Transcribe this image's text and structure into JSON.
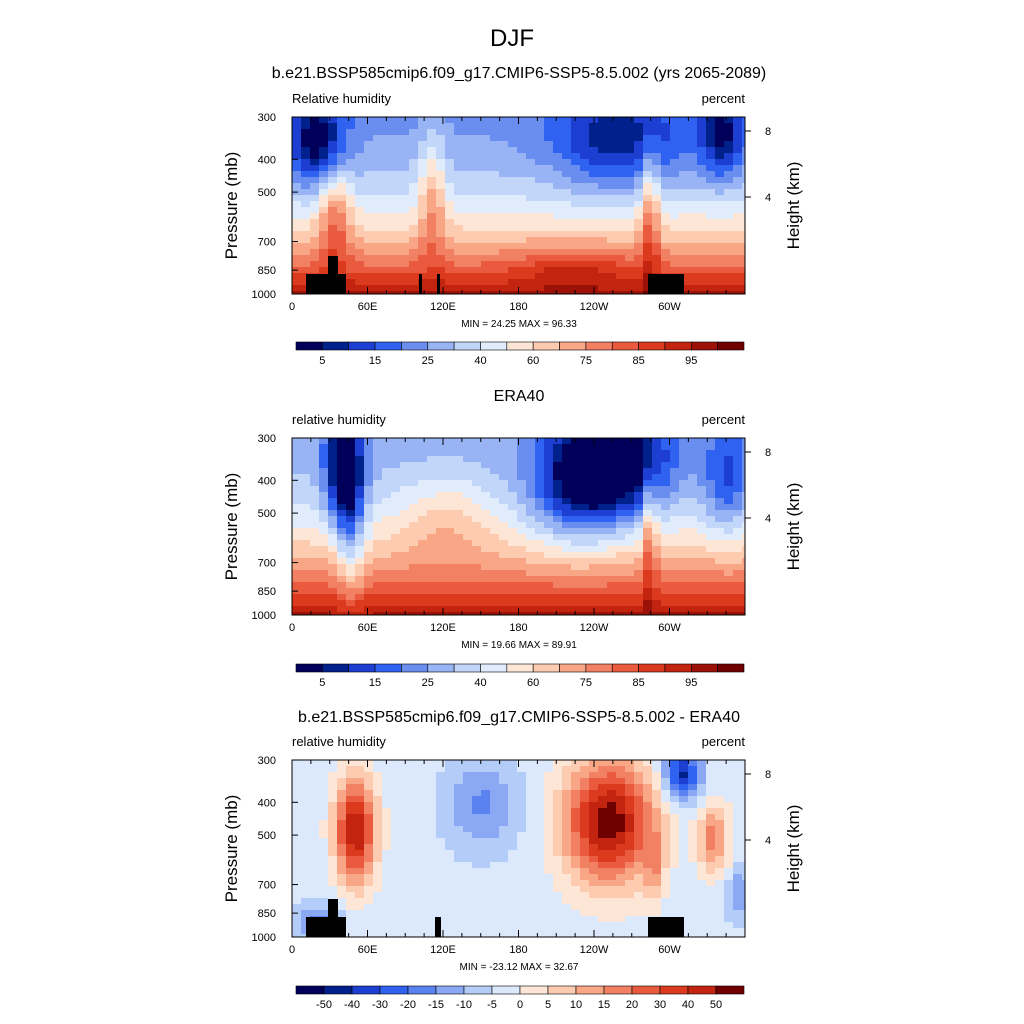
{
  "figure": {
    "main_title": "DJF"
  },
  "chart_data": [
    {
      "type": "heatmap",
      "title": "b.e21.BSSP585cmip6.f09_g17.CMIP6-SSP5-8.5.002 (yrs 2065-2089)",
      "variable_label": "Relative humidity",
      "units_label": "percent",
      "ylabel": "Pressure (mb)",
      "ylabel_right": "Height (km)",
      "x_ticks": [
        "0",
        "60E",
        "120E",
        "180",
        "120W",
        "60W"
      ],
      "y_ticks": [
        "300",
        "400",
        "500",
        "700",
        "850",
        "1000"
      ],
      "right_ticks": [
        "8",
        "4"
      ],
      "stats": "MIN =  24.25  MAX =  96.33",
      "min": 24.25,
      "max": 96.33,
      "colorbar_labels": [
        "5",
        "15",
        "25",
        "40",
        "60",
        "75",
        "85",
        "95"
      ],
      "colorbar_colors": [
        "#00005a",
        "#00208c",
        "#1c3fd2",
        "#2f62f0",
        "#6a8ef0",
        "#98b4f5",
        "#c2d6fa",
        "#e0ecfc",
        "#fde6d6",
        "#fccbb0",
        "#f8a686",
        "#f28062",
        "#ea5a3e",
        "#dc3a1e",
        "#c22410",
        "#9c1208",
        "#700000"
      ],
      "terrain": true
    },
    {
      "type": "heatmap",
      "title": "ERA40",
      "variable_label": "relative humidity",
      "units_label": "percent",
      "ylabel": "Pressure (mb)",
      "ylabel_right": "Height (km)",
      "x_ticks": [
        "0",
        "60E",
        "120E",
        "180",
        "120W",
        "60W"
      ],
      "y_ticks": [
        "300",
        "400",
        "500",
        "700",
        "850",
        "1000"
      ],
      "right_ticks": [
        "8",
        "4"
      ],
      "stats": "MIN =  19.66  MAX =  89.91",
      "min": 19.66,
      "max": 89.91,
      "colorbar_labels": [
        "5",
        "15",
        "25",
        "40",
        "60",
        "75",
        "85",
        "95"
      ],
      "colorbar_colors": [
        "#00005a",
        "#00208c",
        "#1c3fd2",
        "#2f62f0",
        "#6a8ef0",
        "#98b4f5",
        "#c2d6fa",
        "#e0ecfc",
        "#fde6d6",
        "#fccbb0",
        "#f8a686",
        "#f28062",
        "#ea5a3e",
        "#dc3a1e",
        "#c22410",
        "#9c1208",
        "#700000"
      ],
      "terrain": false
    },
    {
      "type": "heatmap",
      "title": "b.e21.BSSP585cmip6.f09_g17.CMIP6-SSP5-8.5.002 - ERA40",
      "variable_label": "relative humidity",
      "units_label": "percent",
      "ylabel": "Pressure (mb)",
      "ylabel_right": "Height (km)",
      "x_ticks": [
        "0",
        "60E",
        "120E",
        "180",
        "120W",
        "60W"
      ],
      "y_ticks": [
        "300",
        "400",
        "500",
        "700",
        "850",
        "1000"
      ],
      "right_ticks": [
        "8",
        "4"
      ],
      "stats": "MIN = -23.12  MAX =  32.67",
      "min": -23.12,
      "max": 32.67,
      "colorbar_labels": [
        "-50",
        "-40",
        "-30",
        "-20",
        "-15",
        "-10",
        "-5",
        "0",
        "5",
        "10",
        "15",
        "20",
        "30",
        "40",
        "50"
      ],
      "colorbar_colors": [
        "#00005a",
        "#00208c",
        "#1c3fd2",
        "#2f62f0",
        "#5a82f0",
        "#8aa8f4",
        "#b4ccf8",
        "#dce8fc",
        "#fde6d6",
        "#fccbb0",
        "#f8a686",
        "#f28062",
        "#ea5a3e",
        "#dc3a1e",
        "#c22410",
        "#700000"
      ],
      "terrain": true
    }
  ]
}
